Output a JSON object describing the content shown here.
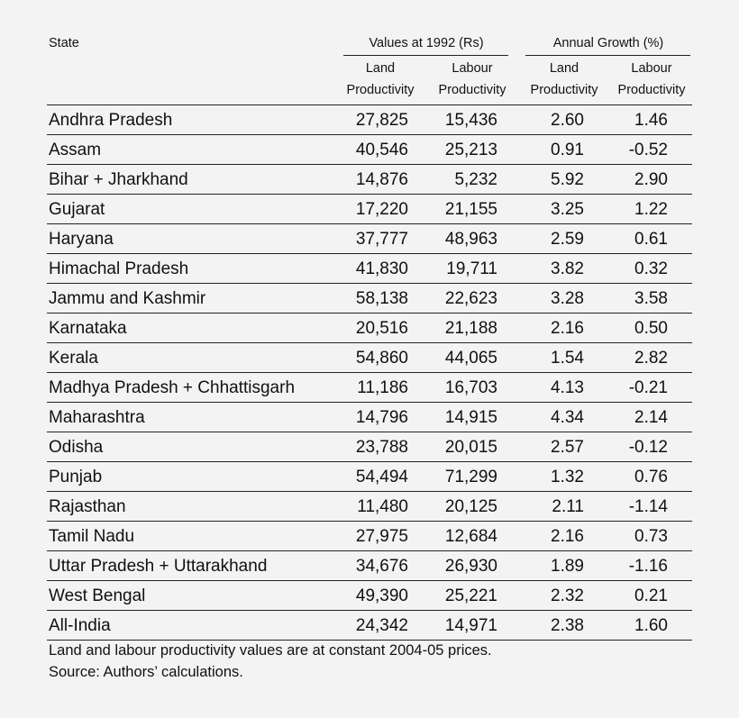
{
  "header": {
    "state": "State",
    "group1": "Values at 1992 (Rs)",
    "group2": "Annual Growth (%)",
    "sub": {
      "land_line1": "Land",
      "land_line2": "Productivity",
      "labour_line1": "Labour",
      "labour_line2": "Productivity"
    }
  },
  "rows": [
    {
      "state": "Andhra Pradesh",
      "land_value": "27,825",
      "labour_value": "15,436",
      "land_growth": "2.60",
      "labour_growth": "1.46"
    },
    {
      "state": "Assam",
      "land_value": "40,546",
      "labour_value": "25,213",
      "land_growth": "0.91",
      "labour_growth": "-0.52"
    },
    {
      "state": "Bihar + Jharkhand",
      "land_value": "14,876",
      "labour_value": "5,232",
      "land_growth": "5.92",
      "labour_growth": "2.90"
    },
    {
      "state": "Gujarat",
      "land_value": "17,220",
      "labour_value": "21,155",
      "land_growth": "3.25",
      "labour_growth": "1.22"
    },
    {
      "state": "Haryana",
      "land_value": "37,777",
      "labour_value": "48,963",
      "land_growth": "2.59",
      "labour_growth": "0.61"
    },
    {
      "state": "Himachal Pradesh",
      "land_value": "41,830",
      "labour_value": "19,711",
      "land_growth": "3.82",
      "labour_growth": "0.32"
    },
    {
      "state": "Jammu and Kashmir",
      "land_value": "58,138",
      "labour_value": "22,623",
      "land_growth": "3.28",
      "labour_growth": "3.58"
    },
    {
      "state": "Karnataka",
      "land_value": "20,516",
      "labour_value": "21,188",
      "land_growth": "2.16",
      "labour_growth": "0.50"
    },
    {
      "state": "Kerala",
      "land_value": "54,860",
      "labour_value": "44,065",
      "land_growth": "1.54",
      "labour_growth": "2.82"
    },
    {
      "state": "Madhya Pradesh + Chhattisgarh",
      "land_value": "11,186",
      "labour_value": "16,703",
      "land_growth": "4.13",
      "labour_growth": "-0.21"
    },
    {
      "state": "Maharashtra",
      "land_value": "14,796",
      "labour_value": "14,915",
      "land_growth": "4.34",
      "labour_growth": "2.14"
    },
    {
      "state": "Odisha",
      "land_value": "23,788",
      "labour_value": "20,015",
      "land_growth": "2.57",
      "labour_growth": "-0.12"
    },
    {
      "state": "Punjab",
      "land_value": "54,494",
      "labour_value": "71,299",
      "land_growth": "1.32",
      "labour_growth": "0.76"
    },
    {
      "state": "Rajasthan",
      "land_value": "11,480",
      "labour_value": "20,125",
      "land_growth": "2.11",
      "labour_growth": "-1.14"
    },
    {
      "state": "Tamil Nadu",
      "land_value": "27,975",
      "labour_value": "12,684",
      "land_growth": "2.16",
      "labour_growth": "0.73"
    },
    {
      "state": "Uttar Pradesh + Uttarakhand",
      "land_value": "34,676",
      "labour_value": "26,930",
      "land_growth": "1.89",
      "labour_growth": "-1.16"
    },
    {
      "state": "West Bengal",
      "land_value": "49,390",
      "labour_value": "25,221",
      "land_growth": "2.32",
      "labour_growth": "0.21"
    },
    {
      "state": "All-India",
      "land_value": "24,342",
      "labour_value": "14,971",
      "land_growth": "2.38",
      "labour_growth": "1.60"
    }
  ],
  "notes": [
    "Land and labour productivity values are at constant 2004-05 prices.",
    "Source: Authors’ calculations."
  ]
}
